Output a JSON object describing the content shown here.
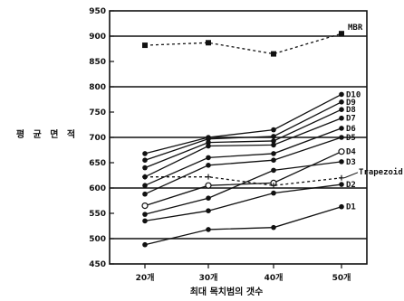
{
  "chart_data": {
    "type": "line",
    "title": "",
    "xlabel": "최대 목치범의 갯수",
    "ylabel": "평 균 면 적",
    "categories": [
      "20개",
      "30개",
      "40개",
      "50개"
    ],
    "ylim": [
      450,
      950
    ],
    "yticks": [
      450,
      500,
      550,
      600,
      650,
      700,
      750,
      800,
      850,
      900,
      950
    ],
    "grid": "horizontal-major",
    "series": [
      {
        "name": "MBR",
        "marker": "square",
        "line": "dashed",
        "values": [
          882,
          887,
          865,
          905
        ]
      },
      {
        "name": "D10",
        "marker": "dot",
        "line": "solid",
        "values": [
          668,
          700,
          715,
          785
        ]
      },
      {
        "name": "D9",
        "marker": "dot",
        "line": "solid",
        "values": [
          655,
          697,
          702,
          770
        ]
      },
      {
        "name": "D8",
        "marker": "dot",
        "line": "solid",
        "values": [
          640,
          690,
          693,
          755
        ]
      },
      {
        "name": "D7",
        "marker": "dot",
        "line": "solid",
        "values": [
          622,
          683,
          685,
          738
        ]
      },
      {
        "name": "D6",
        "marker": "dot",
        "line": "solid",
        "values": [
          605,
          660,
          668,
          718
        ]
      },
      {
        "name": "D5",
        "marker": "dot",
        "line": "solid",
        "values": [
          588,
          645,
          655,
          700
        ]
      },
      {
        "name": "D4",
        "marker": "circle",
        "line": "solid",
        "values": [
          565,
          605,
          610,
          672
        ]
      },
      {
        "name": "Trapezoid",
        "marker": "cross",
        "line": "dashed",
        "values": [
          622,
          622,
          605,
          620
        ]
      },
      {
        "name": "D3",
        "marker": "dot",
        "line": "solid",
        "values": [
          548,
          580,
          635,
          652
        ]
      },
      {
        "name": "D2",
        "marker": "dot",
        "line": "solid",
        "values": [
          535,
          555,
          590,
          607
        ]
      },
      {
        "name": "D1",
        "marker": "dot",
        "line": "solid",
        "values": [
          488,
          518,
          522,
          563
        ]
      }
    ]
  }
}
